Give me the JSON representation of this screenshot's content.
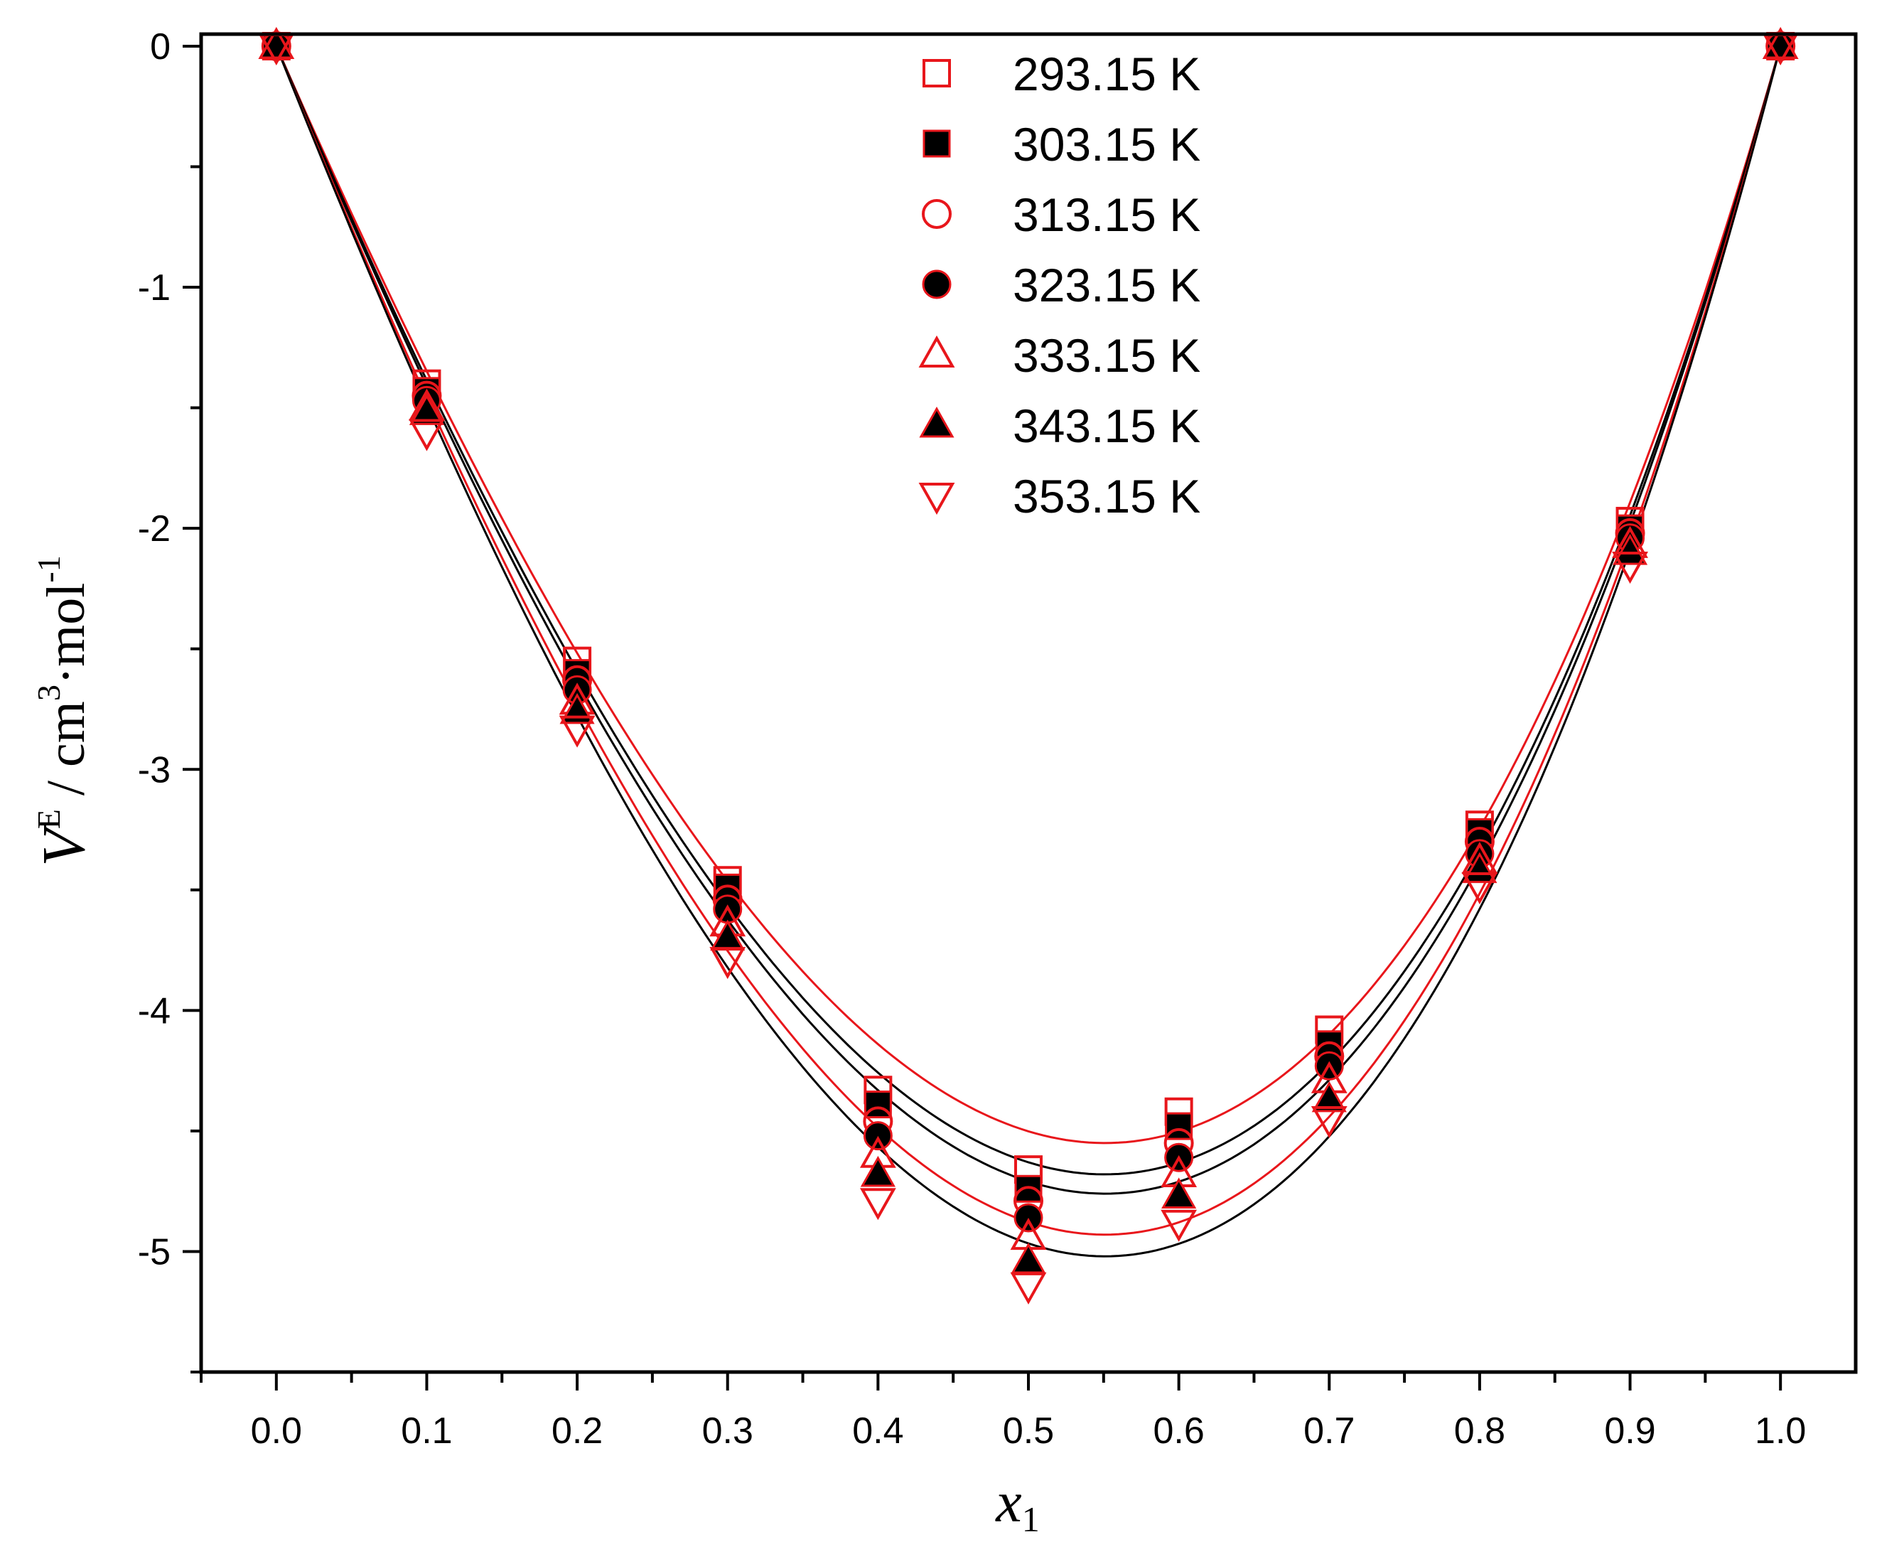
{
  "chart_data": {
    "type": "scatter",
    "xlabel": {
      "var": "x",
      "sub": "1"
    },
    "ylabel": {
      "var": "V",
      "sup": "E",
      "rest": " / cm",
      "sup2": "3",
      "rest2": "·mol",
      "sup3": "-1"
    },
    "xlim": [
      -0.05,
      1.05
    ],
    "ylim": [
      -5.5,
      0.05
    ],
    "xticks": [
      "0.0",
      "0.1",
      "0.2",
      "0.3",
      "0.4",
      "0.5",
      "0.6",
      "0.7",
      "0.8",
      "0.9",
      "1.0"
    ],
    "yticks": [
      "0",
      "-1",
      "-2",
      "-3",
      "-4",
      "-5"
    ],
    "legend_position": "top-center",
    "grid": false,
    "x": [
      0.0,
      0.1,
      0.2,
      0.3,
      0.4,
      0.5,
      0.6,
      0.7,
      0.8,
      0.9,
      1.0
    ],
    "series": [
      {
        "name": "293.15 K",
        "marker": "square-open",
        "color": "#e8161b",
        "values": [
          0,
          -1.4,
          -2.55,
          -3.46,
          -4.33,
          -4.66,
          -4.42,
          -4.08,
          -3.23,
          -1.97,
          0
        ]
      },
      {
        "name": "303.15 K",
        "marker": "square-filled",
        "color": "#000000",
        "values": [
          0,
          -1.43,
          -2.6,
          -3.49,
          -4.39,
          -4.74,
          -4.48,
          -4.14,
          -3.26,
          -2.0,
          0
        ]
      },
      {
        "name": "313.15 K",
        "marker": "circle-open",
        "color": "#e8161b",
        "values": [
          0,
          -1.45,
          -2.63,
          -3.54,
          -4.46,
          -4.79,
          -4.55,
          -4.19,
          -3.3,
          -2.02,
          0
        ]
      },
      {
        "name": "323.15 K",
        "marker": "circle-filled",
        "color": "#000000",
        "values": [
          0,
          -1.47,
          -2.67,
          -3.58,
          -4.52,
          -4.86,
          -4.61,
          -4.23,
          -3.35,
          -2.04,
          0
        ]
      },
      {
        "name": "333.15 K",
        "marker": "triangle-up-open",
        "color": "#e8161b",
        "values": [
          0,
          -1.5,
          -2.72,
          -3.64,
          -4.6,
          -4.94,
          -4.68,
          -4.29,
          -3.38,
          -2.07,
          0
        ]
      },
      {
        "name": "343.15 K",
        "marker": "triangle-up-filled",
        "color": "#000000",
        "values": [
          0,
          -1.52,
          -2.76,
          -3.7,
          -4.68,
          -5.04,
          -4.77,
          -4.37,
          -3.42,
          -2.1,
          0
        ]
      },
      {
        "name": "353.15 K",
        "marker": "triangle-down-open",
        "color": "#e8161b",
        "values": [
          0,
          -1.6,
          -2.83,
          -3.79,
          -4.79,
          -5.14,
          -4.88,
          -4.45,
          -3.48,
          -2.15,
          0
        ]
      }
    ],
    "fit_curves": [
      {
        "color": "#e8161b",
        "min": -4.55
      },
      {
        "color": "#000000",
        "min": -4.68
      },
      {
        "color": "#000000",
        "min": -4.76
      },
      {
        "color": "#e8161b",
        "min": -4.93
      },
      {
        "color": "#000000",
        "min": -5.02
      }
    ]
  }
}
